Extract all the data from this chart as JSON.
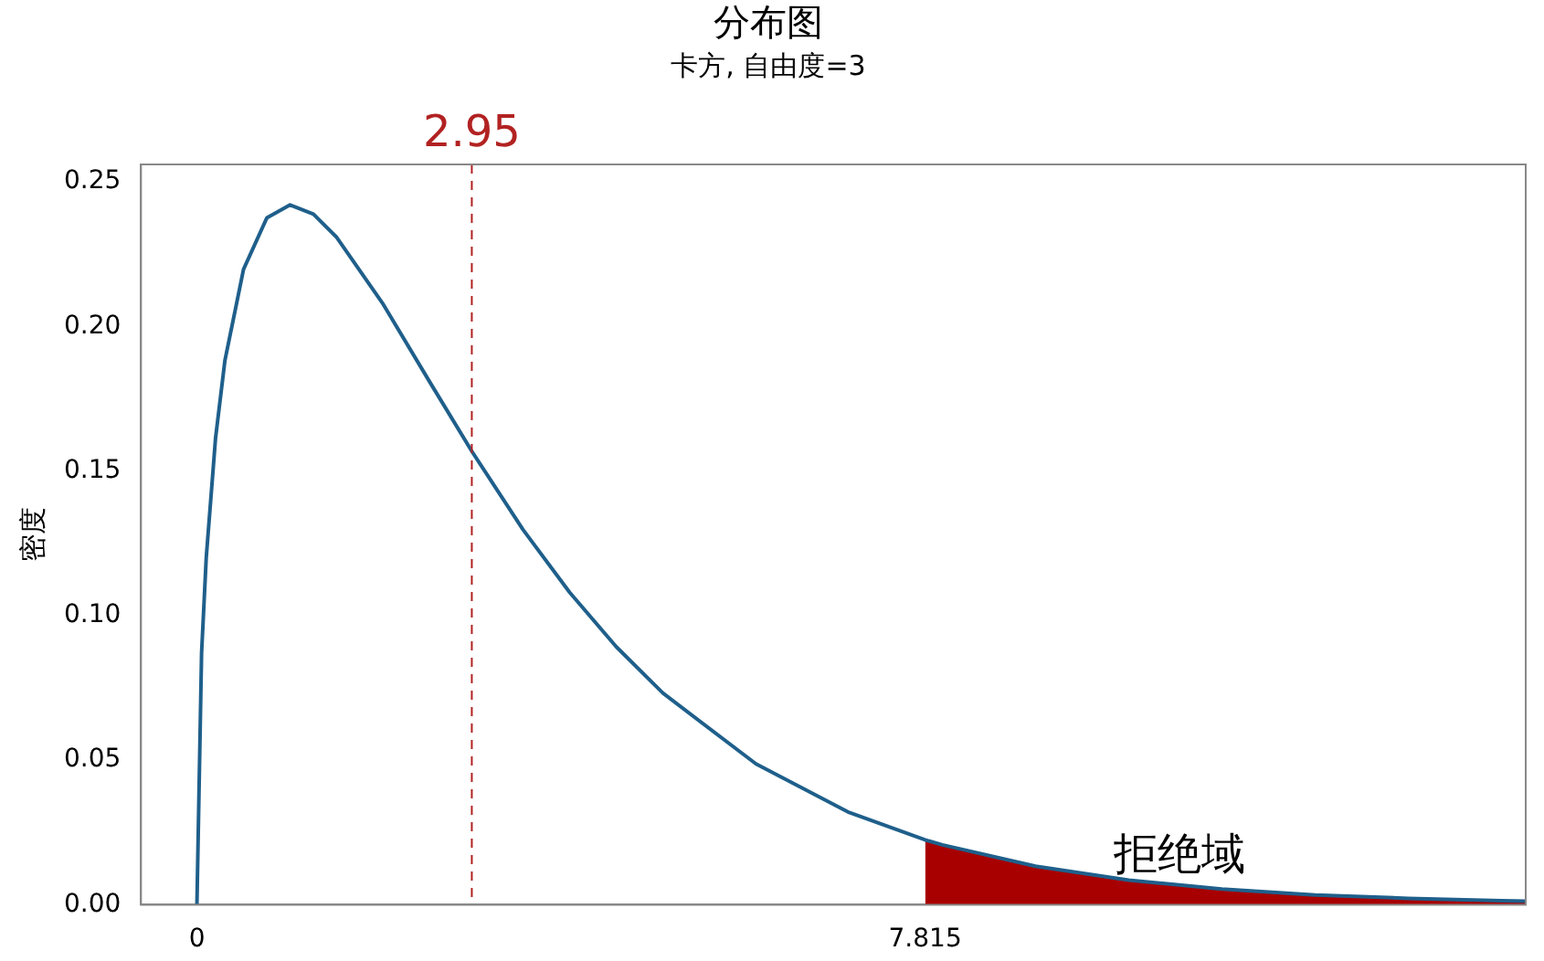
{
  "chart_data": {
    "type": "line",
    "title": "分布图",
    "subtitle": "卡方, 自由度=3",
    "ylabel": "密度",
    "xlim": [
      -0.6,
      14.26
    ],
    "ylim": [
      0,
      0.256
    ],
    "xticks": [
      0,
      7.815
    ],
    "yticks": [
      {
        "value": 0,
        "label": "0.00"
      },
      {
        "value": 0.05,
        "label": "0.05"
      },
      {
        "value": 0.1,
        "label": "0.10"
      },
      {
        "value": 0.15,
        "label": "0.15"
      },
      {
        "value": 0.2,
        "label": "0.20"
      },
      {
        "value": 0.25,
        "label": "0.25"
      }
    ],
    "series": [
      {
        "type": "area",
        "color": "#a80000",
        "x": [
          7.815,
          8,
          9,
          10,
          11,
          12,
          13,
          14,
          14.26
        ],
        "values": [
          0.0224,
          0.0207,
          0.0133,
          0.0085,
          0.0054,
          0.0034,
          0.0022,
          0.0014,
          0.0012
        ]
      },
      {
        "color": "#1f5f8b",
        "x": [
          0,
          0,
          0.05,
          0.1,
          0.2,
          0.3,
          0.5,
          0.75,
          1,
          1.25,
          1.5,
          2,
          2.5,
          2.95,
          3.5,
          4,
          4.5,
          5,
          6,
          7,
          7.815,
          8,
          9,
          10,
          11,
          12,
          13,
          14,
          14.26
        ],
        "values": [
          0,
          0,
          0.087,
          0.12,
          0.1614,
          0.1881,
          0.2197,
          0.2375,
          0.242,
          0.2388,
          0.2308,
          0.2076,
          0.1807,
          0.1568,
          0.1297,
          0.108,
          0.0892,
          0.0732,
          0.0487,
          0.0319,
          0.0224,
          0.0207,
          0.0133,
          0.0085,
          0.0054,
          0.0034,
          0.0022,
          0.0014,
          0.0012
        ]
      }
    ],
    "ref_lines": [
      {
        "axis": "x",
        "value": 2.95,
        "label": "2.95",
        "color": "#b22222",
        "line_style": "dashed"
      }
    ],
    "annotations": [
      "拒绝域"
    ],
    "grid": false,
    "legend": false,
    "marker": "none"
  }
}
